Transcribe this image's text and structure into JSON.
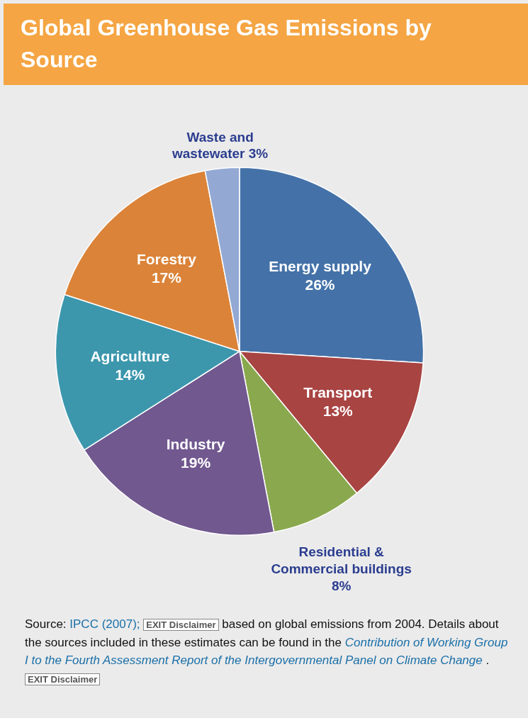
{
  "chart_data": {
    "type": "pie",
    "title": "Global Greenhouse Gas Emissions by Source",
    "categories": [
      "Energy supply",
      "Transport",
      "Residential & Commercial buildings",
      "Industry",
      "Agriculture",
      "Forestry",
      "Waste and wastewater"
    ],
    "values": [
      26,
      13,
      8,
      19,
      14,
      17,
      3
    ],
    "colors": [
      "#4472a8",
      "#a84442",
      "#8aa84e",
      "#71588f",
      "#3c97ad",
      "#db8338",
      "#93a9d4"
    ],
    "value_labels": [
      "26%",
      "13%",
      "8%",
      "19%",
      "14%",
      "17%",
      "3%"
    ],
    "annotations": [
      "Source: IPCC (2007);",
      "EXIT Disclaimer",
      "based on global emissions from 2004. Details about the sources included in these estimates can be found in the",
      "Contribution of Working Group I to the Fourth Assessment Report of the Intergovernmental Panel on Climate Change",
      ".",
      "EXIT Disclaimer"
    ]
  }
}
